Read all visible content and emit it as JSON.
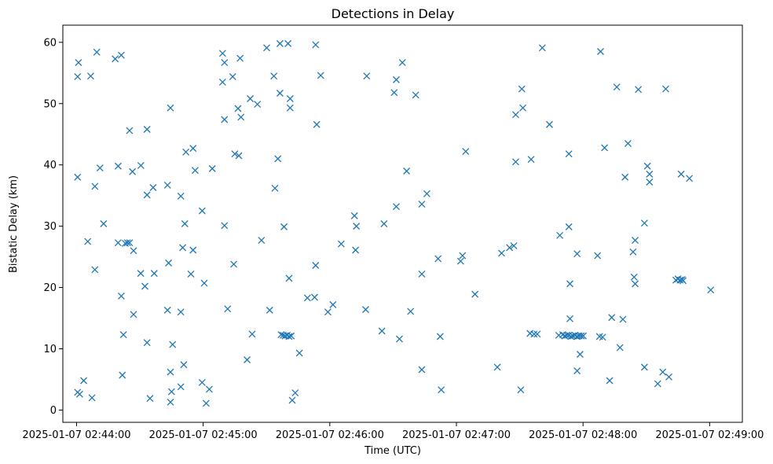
{
  "chart_data": {
    "type": "scatter",
    "title": "Detections in Delay",
    "xlabel": "Time (UTC)",
    "ylabel": "Bistatic Delay (km)",
    "x_unit": "seconds after 2025-01-07 02:44:00 UTC",
    "xlim": [
      -6.5,
      315.5
    ],
    "ylim": [
      -2,
      62.8
    ],
    "x_ticks": [
      0,
      60,
      120,
      180,
      240,
      300
    ],
    "x_tick_labels": [
      "2025-01-07 02:44:00",
      "2025-01-07 02:45:00",
      "2025-01-07 02:46:00",
      "2025-01-07 02:47:00",
      "2025-01-07 02:48:00",
      "2025-01-07 02:49:00"
    ],
    "y_ticks": [
      0,
      10,
      20,
      30,
      40,
      50,
      60
    ],
    "y_tick_labels": [
      "0",
      "10",
      "20",
      "30",
      "40",
      "50",
      "60"
    ],
    "grid": false,
    "legend": "none",
    "marker": "x",
    "color": "#1f77b4",
    "series": [
      {
        "points": [
          [
            0.5,
            54.4
          ],
          [
            0.9,
            56.7
          ],
          [
            6.7,
            54.5
          ],
          [
            9.6,
            58.4
          ],
          [
            18.3,
            57.3
          ],
          [
            21.2,
            57.9
          ],
          [
            0.5,
            38.0
          ],
          [
            8.7,
            36.5
          ],
          [
            11.1,
            39.5
          ],
          [
            25.1,
            45.6
          ],
          [
            19.7,
            39.8
          ],
          [
            26.5,
            38.9
          ],
          [
            30.5,
            39.9
          ],
          [
            33.4,
            45.8
          ],
          [
            5.3,
            27.5
          ],
          [
            12.8,
            30.4
          ],
          [
            8.7,
            22.9
          ],
          [
            19.7,
            27.3
          ],
          [
            23.1,
            27.2
          ],
          [
            24.1,
            27.3
          ],
          [
            25.1,
            27.3
          ],
          [
            27.0,
            26.0
          ],
          [
            30.4,
            22.3
          ],
          [
            21.2,
            18.6
          ],
          [
            32.4,
            20.2
          ],
          [
            36.8,
            22.3
          ],
          [
            27.0,
            15.6
          ],
          [
            22.2,
            12.3
          ],
          [
            33.4,
            11.0
          ],
          [
            21.7,
            5.7
          ],
          [
            0.5,
            2.9
          ],
          [
            1.5,
            2.6
          ],
          [
            3.4,
            4.8
          ],
          [
            7.3,
            2.0
          ],
          [
            34.8,
            1.9
          ],
          [
            33.4,
            35.1
          ],
          [
            36.3,
            36.3
          ],
          [
            44.5,
            49.3
          ],
          [
            43.1,
            36.7
          ],
          [
            49.4,
            34.9
          ],
          [
            51.8,
            42.1
          ],
          [
            55.2,
            42.7
          ],
          [
            56.2,
            39.1
          ],
          [
            51.3,
            30.4
          ],
          [
            50.3,
            26.5
          ],
          [
            54.2,
            22.2
          ],
          [
            55.2,
            26.1
          ],
          [
            43.6,
            24.0
          ],
          [
            43.1,
            16.3
          ],
          [
            49.4,
            16.0
          ],
          [
            45.5,
            10.7
          ],
          [
            44.5,
            6.2
          ],
          [
            45.0,
            3.0
          ],
          [
            44.5,
            1.3
          ],
          [
            50.8,
            7.4
          ],
          [
            49.4,
            3.8
          ],
          [
            59.5,
            32.5
          ],
          [
            60.5,
            20.7
          ],
          [
            59.5,
            4.5
          ],
          [
            61.4,
            1.1
          ],
          [
            62.9,
            3.4
          ],
          [
            69.2,
            58.2
          ],
          [
            70.1,
            56.7
          ],
          [
            74.0,
            54.4
          ],
          [
            69.2,
            53.5
          ],
          [
            70.1,
            47.4
          ],
          [
            76.5,
            49.2
          ],
          [
            77.9,
            47.8
          ],
          [
            77.5,
            57.4
          ],
          [
            82.3,
            50.8
          ],
          [
            85.7,
            49.9
          ],
          [
            90.1,
            59.1
          ],
          [
            93.5,
            54.5
          ],
          [
            96.4,
            59.8
          ],
          [
            100.2,
            59.8
          ],
          [
            96.4,
            51.7
          ],
          [
            101.2,
            50.8
          ],
          [
            101.2,
            49.3
          ],
          [
            113.3,
            59.6
          ],
          [
            115.7,
            54.6
          ],
          [
            113.8,
            46.6
          ],
          [
            75.0,
            41.8
          ],
          [
            76.9,
            41.5
          ],
          [
            95.4,
            41.0
          ],
          [
            94.0,
            36.2
          ],
          [
            64.3,
            39.4
          ],
          [
            70.1,
            30.1
          ],
          [
            87.6,
            27.7
          ],
          [
            98.3,
            29.9
          ],
          [
            74.5,
            23.8
          ],
          [
            71.6,
            16.5
          ],
          [
            83.2,
            12.4
          ],
          [
            80.8,
            8.2
          ],
          [
            91.5,
            16.3
          ],
          [
            96.9,
            12.3
          ],
          [
            97.9,
            12.2
          ],
          [
            98.8,
            12.1
          ],
          [
            99.8,
            12.2
          ],
          [
            100.7,
            12.0
          ],
          [
            101.7,
            12.1
          ],
          [
            100.7,
            21.5
          ],
          [
            113.3,
            23.6
          ],
          [
            109.4,
            18.3
          ],
          [
            112.8,
            18.4
          ],
          [
            105.6,
            9.3
          ],
          [
            103.6,
            2.8
          ],
          [
            102.2,
            1.6
          ],
          [
            119.1,
            16.0
          ],
          [
            121.5,
            17.2
          ],
          [
            125.4,
            27.1
          ],
          [
            131.7,
            31.7
          ],
          [
            132.2,
            26.1
          ],
          [
            132.6,
            30.0
          ],
          [
            137.5,
            54.5
          ],
          [
            150.5,
            51.8
          ],
          [
            151.5,
            53.9
          ],
          [
            154.4,
            56.7
          ],
          [
            160.7,
            51.4
          ],
          [
            145.7,
            30.4
          ],
          [
            151.5,
            33.2
          ],
          [
            156.4,
            39.0
          ],
          [
            163.6,
            33.6
          ],
          [
            166.0,
            35.3
          ],
          [
            137.0,
            16.4
          ],
          [
            144.7,
            12.9
          ],
          [
            153.0,
            11.6
          ],
          [
            158.3,
            16.1
          ],
          [
            163.6,
            22.2
          ],
          [
            171.3,
            24.7
          ],
          [
            163.6,
            6.6
          ],
          [
            172.8,
            3.3
          ],
          [
            172.3,
            12.0
          ],
          [
            182.0,
            24.3
          ],
          [
            182.9,
            25.2
          ],
          [
            184.4,
            42.2
          ],
          [
            188.8,
            18.9
          ],
          [
            199.4,
            7.0
          ],
          [
            201.4,
            25.6
          ],
          [
            205.2,
            26.5
          ],
          [
            207.2,
            26.8
          ],
          [
            208.1,
            48.2
          ],
          [
            211.0,
            52.4
          ],
          [
            211.5,
            49.3
          ],
          [
            208.1,
            40.5
          ],
          [
            215.4,
            40.9
          ],
          [
            220.7,
            59.1
          ],
          [
            224.1,
            46.6
          ],
          [
            210.5,
            3.3
          ],
          [
            214.9,
            12.5
          ],
          [
            216.8,
            12.4
          ],
          [
            218.3,
            12.4
          ],
          [
            229.0,
            28.5
          ],
          [
            233.3,
            29.9
          ],
          [
            233.3,
            41.8
          ],
          [
            237.2,
            25.5
          ],
          [
            246.9,
            25.2
          ],
          [
            233.8,
            20.6
          ],
          [
            233.8,
            14.9
          ],
          [
            228.5,
            12.2
          ],
          [
            230.4,
            12.3
          ],
          [
            231.4,
            12.1
          ],
          [
            232.3,
            12.2
          ],
          [
            233.3,
            12.2
          ],
          [
            234.3,
            12.0
          ],
          [
            235.2,
            12.1
          ],
          [
            236.2,
            12.2
          ],
          [
            237.2,
            12.0
          ],
          [
            238.1,
            12.1
          ],
          [
            239.1,
            12.1
          ],
          [
            240.1,
            12.1
          ],
          [
            247.8,
            12.0
          ],
          [
            249.3,
            11.9
          ],
          [
            238.6,
            9.1
          ],
          [
            237.2,
            6.4
          ],
          [
            248.3,
            58.5
          ],
          [
            250.2,
            42.8
          ],
          [
            256.0,
            52.7
          ],
          [
            259.9,
            38.0
          ],
          [
            261.3,
            43.5
          ],
          [
            266.2,
            52.3
          ],
          [
            264.7,
            27.7
          ],
          [
            263.7,
            25.8
          ],
          [
            264.2,
            21.7
          ],
          [
            264.7,
            20.6
          ],
          [
            269.1,
            30.5
          ],
          [
            270.5,
            39.8
          ],
          [
            271.5,
            38.5
          ],
          [
            271.5,
            37.2
          ],
          [
            257.5,
            10.2
          ],
          [
            258.9,
            14.8
          ],
          [
            253.6,
            15.1
          ],
          [
            252.6,
            4.8
          ],
          [
            269.1,
            7.0
          ],
          [
            275.4,
            4.3
          ],
          [
            277.8,
            6.2
          ],
          [
            280.7,
            5.4
          ],
          [
            279.2,
            52.4
          ],
          [
            286.5,
            38.5
          ],
          [
            290.4,
            37.8
          ],
          [
            285.0,
            21.4
          ],
          [
            286.0,
            21.2
          ],
          [
            287.0,
            21.3
          ],
          [
            284.0,
            21.2
          ],
          [
            287.4,
            21.1
          ],
          [
            300.5,
            19.6
          ]
        ]
      }
    ]
  }
}
